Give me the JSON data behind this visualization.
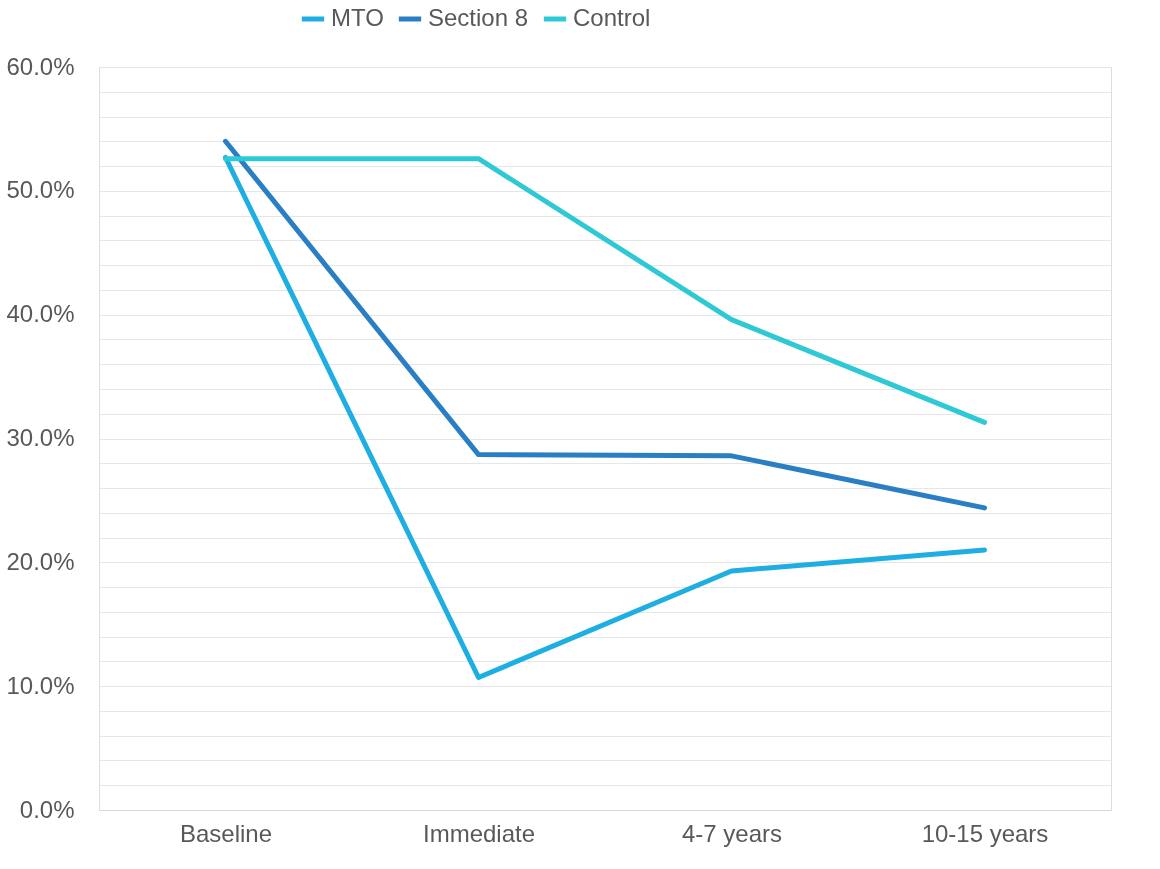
{
  "chart_data": {
    "type": "line",
    "categories": [
      "Baseline",
      "Immediate",
      "4-7 years",
      "10-15 years"
    ],
    "series": [
      {
        "name": "MTO",
        "color": "#1eaee2",
        "values": [
          52.7,
          10.7,
          19.3,
          21.0
        ]
      },
      {
        "name": "Section 8",
        "color": "#2a7fc4",
        "values": [
          54.0,
          28.7,
          28.6,
          24.4
        ]
      },
      {
        "name": "Control",
        "color": "#2fc9d6",
        "values": [
          52.6,
          52.6,
          39.6,
          31.3
        ]
      }
    ],
    "ylim": [
      0,
      60
    ],
    "yticks": [
      {
        "value": 0,
        "label": "0.0%"
      },
      {
        "value": 2,
        "label": null
      },
      {
        "value": 4,
        "label": null
      },
      {
        "value": 6,
        "label": null
      },
      {
        "value": 8,
        "label": null
      },
      {
        "value": 10,
        "label": "10.0%"
      },
      {
        "value": 12,
        "label": null
      },
      {
        "value": 14,
        "label": null
      },
      {
        "value": 16,
        "label": null
      },
      {
        "value": 18,
        "label": null
      },
      {
        "value": 20,
        "label": "20.0%"
      },
      {
        "value": 22,
        "label": null
      },
      {
        "value": 24,
        "label": null
      },
      {
        "value": 26,
        "label": null
      },
      {
        "value": 28,
        "label": null
      },
      {
        "value": 30,
        "label": "30.0%"
      },
      {
        "value": 32,
        "label": null
      },
      {
        "value": 34,
        "label": null
      },
      {
        "value": 36,
        "label": null
      },
      {
        "value": 38,
        "label": null
      },
      {
        "value": 40,
        "label": "40.0%"
      },
      {
        "value": 42,
        "label": null
      },
      {
        "value": 44,
        "label": null
      },
      {
        "value": 46,
        "label": null
      },
      {
        "value": 48,
        "label": null
      },
      {
        "value": 50,
        "label": "50.0%"
      },
      {
        "value": 52,
        "label": null
      },
      {
        "value": 54,
        "label": null
      },
      {
        "value": 56,
        "label": null
      },
      {
        "value": 58,
        "label": null
      },
      {
        "value": 60,
        "label": "60.0%"
      }
    ],
    "grid": "y",
    "legend": "top",
    "marker": "none",
    "line_style": "solid"
  }
}
